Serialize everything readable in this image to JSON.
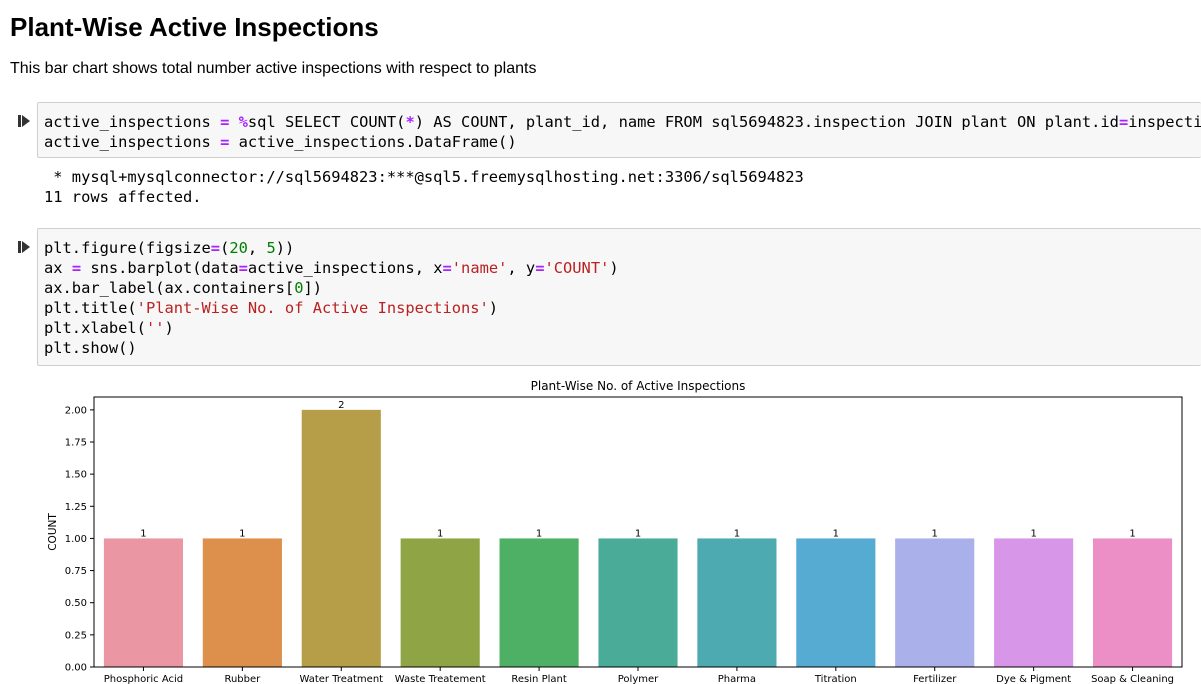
{
  "markdown": {
    "title": "Plant-Wise Active Inspections",
    "description": "This bar chart shows total number active inspections with respect to plants"
  },
  "cell1": {
    "line1": {
      "a": "active_inspections ",
      "b": "=",
      "c": " ",
      "d": "%",
      "e": "sql SELECT COUNT(",
      "f": "*",
      "g": ") AS COUNT, plant_id, name FROM sql5694823.inspection JOIN plant ON plant.id",
      "h": "=",
      "i": "inspection.plant_id"
    },
    "line2": {
      "a": "active_inspections ",
      "b": "=",
      "c": " active_inspections.DataFrame()"
    }
  },
  "output1": {
    "line1": " * mysql+mysqlconnector://sql5694823:***@sql5.freemysqlhosting.net:3306/sql5694823",
    "line2": "11 rows affected."
  },
  "cell2": {
    "l1": {
      "a": "plt.figure(figsize",
      "b": "=",
      "c": "(",
      "d": "20",
      "e": ", ",
      "f": "5",
      "g": "))"
    },
    "l2": {
      "a": "ax ",
      "b": "=",
      "c": " sns.barplot(data",
      "d": "=",
      "e": "active_inspections, x",
      "f": "=",
      "g": "'name'",
      "h": ", y",
      "i": "=",
      "j": "'COUNT'",
      "k": ")"
    },
    "l3": {
      "a": "ax.bar_label(ax.containers[",
      "b": "0",
      "c": "])"
    },
    "l4": {
      "a": "plt.title(",
      "b": "'Plant-Wise No. of Active Inspections'",
      "c": ")"
    },
    "l5": {
      "a": "plt.xlabel(",
      "b": "''",
      "c": ")"
    },
    "l6": {
      "a": "plt.show()"
    }
  },
  "chart_data": {
    "type": "bar",
    "title": "Plant-Wise No. of Active Inspections",
    "xlabel": "",
    "ylabel": "COUNT",
    "ylim": [
      0,
      2.1
    ],
    "yticks": [
      0,
      0.25,
      0.5,
      0.75,
      1,
      1.25,
      1.5,
      1.75,
      2
    ],
    "ytick_labels": [
      "0.00",
      "0.25",
      "0.50",
      "0.75",
      "1.00",
      "1.25",
      "1.50",
      "1.75",
      "2.00"
    ],
    "categories": [
      "Phosphoric Acid",
      "Rubber",
      "Water Treatment",
      "Waste Treatement",
      "Resin Plant",
      "Polymer",
      "Pharma",
      "Titration",
      "Fertilizer",
      "Dye & Pigment",
      "Soap & Cleaning"
    ],
    "values": [
      1,
      1,
      2,
      1,
      1,
      1,
      1,
      1,
      1,
      1,
      1
    ],
    "bar_labels": [
      "1",
      "1",
      "2",
      "1",
      "1",
      "1",
      "1",
      "1",
      "1",
      "1",
      "1"
    ],
    "colors": [
      "#ea96a3",
      "#dd8f4c",
      "#b59e47",
      "#8fa545",
      "#4db065",
      "#4aac98",
      "#4daab0",
      "#56abd3",
      "#a9b0ea",
      "#d896e8",
      "#eb8fc6"
    ],
    "grid": false
  }
}
